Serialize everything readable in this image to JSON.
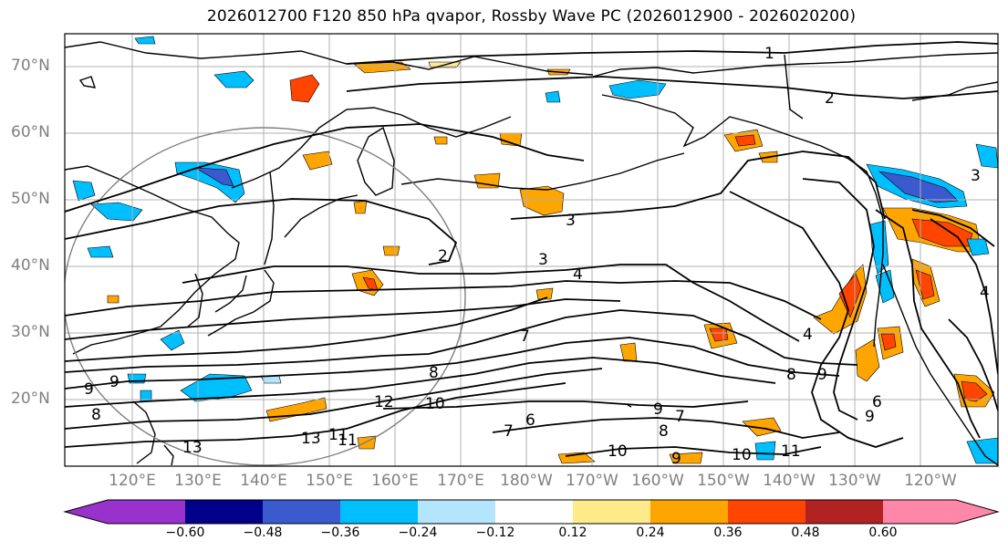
{
  "title": "2026012700 F120 850 hPa qvapor, Rossby Wave PC (2026012900 - 2026020200)",
  "lat_labels": [
    "70°N",
    "60°N",
    "50°N",
    "40°N",
    "30°N",
    "20°N"
  ],
  "lon_labels": [
    "120°E",
    "130°E",
    "140°E",
    "150°E",
    "160°E",
    "170°E",
    "180°W",
    "170°W",
    "160°W",
    "150°W",
    "140°W",
    "130°W",
    "120°W"
  ],
  "colorbar": {
    "colors": [
      "#9932cc",
      "#00008b",
      "#3a5acd",
      "#00bfff",
      "#b3e5fc",
      "#ffffff",
      "#ffeb8a",
      "#ffa500",
      "#ff4500",
      "#b22222",
      "#ff88aa"
    ],
    "tick_labels": [
      "−0.60",
      "−0.48",
      "−0.36",
      "−0.24",
      "−0.12",
      "0.12",
      "0.24",
      "0.36",
      "0.48",
      "0.60"
    ]
  },
  "contour_labels": [
    "1",
    "2",
    "3",
    "4",
    "2",
    "3",
    "7",
    "8",
    "9",
    "10",
    "11",
    "12",
    "13",
    "7",
    "9",
    "6",
    "7",
    "8",
    "9",
    "10",
    "11",
    "10",
    "8",
    "9",
    "6",
    "9",
    "4",
    "4",
    "3",
    "9",
    "8",
    "13",
    "11"
  ]
}
